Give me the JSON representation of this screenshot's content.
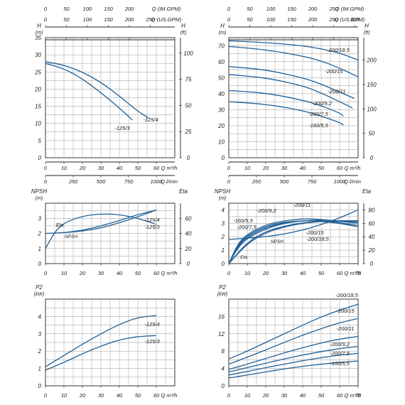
{
  "colors": {
    "curve": "#1f5f96",
    "grid": "#9a9a9a",
    "frame": "#222222"
  },
  "chart_data": [
    {
      "id": "head-small",
      "type": "line",
      "top_axes": [
        {
          "label": "Q (IM.GPM)",
          "ticks": [
            0,
            50,
            100,
            150,
            200
          ]
        },
        {
          "label": "Q (US.GPM)",
          "ticks": [
            0,
            50,
            100,
            150,
            200,
            250
          ]
        }
      ],
      "bottom_axes": [
        {
          "label": "Q m³/h",
          "ticks": [
            0,
            10,
            20,
            30,
            40,
            50,
            60
          ]
        },
        {
          "label": "Q l/min",
          "ticks": [
            0,
            250,
            500,
            750,
            1000
          ]
        }
      ],
      "ylabel": "H (m)",
      "ylim": [
        0,
        35
      ],
      "yticks": [
        0,
        5,
        10,
        15,
        20,
        25,
        30,
        35
      ],
      "y2label": "H (ft)",
      "y2ticks": [
        0,
        25,
        50,
        75,
        100
      ],
      "xlim": [
        0,
        70
      ],
      "grid": true,
      "series": [
        {
          "name": "-125/4",
          "x": [
            0,
            10,
            20,
            30,
            40,
            50,
            56
          ],
          "y": [
            28,
            27,
            25,
            22,
            18,
            13.5,
            11.5
          ]
        },
        {
          "name": "-125/3",
          "x": [
            0,
            10,
            20,
            30,
            40,
            47
          ],
          "y": [
            27.5,
            26,
            23,
            19,
            14.5,
            11
          ]
        }
      ]
    },
    {
      "id": "head-large",
      "type": "line",
      "top_axes": [
        {
          "label": "Q (IM.GPM)",
          "ticks": [
            0,
            50,
            100,
            150,
            200,
            250
          ]
        },
        {
          "label": "Q (US.GPM)",
          "ticks": [
            0,
            50,
            100,
            150,
            200,
            250,
            300
          ]
        }
      ],
      "bottom_axes": [
        {
          "label": "Q m³/h",
          "ticks": [
            0,
            10,
            20,
            30,
            40,
            50,
            60
          ]
        },
        {
          "label": "Q l/min",
          "ticks": [
            0,
            250,
            500,
            750,
            1000
          ]
        }
      ],
      "ylabel": "H (m)",
      "ylim": [
        0,
        75
      ],
      "yticks": [
        0,
        10,
        20,
        30,
        40,
        50,
        60,
        70
      ],
      "y2label": "H (ft)",
      "y2ticks": [
        0,
        50,
        100,
        150,
        200
      ],
      "xlim": [
        0,
        70
      ],
      "grid": true,
      "series": [
        {
          "name": "-200/18,5",
          "x": [
            0,
            20,
            40,
            50,
            60,
            70
          ],
          "y": [
            73,
            72,
            70,
            68,
            65.5,
            61
          ]
        },
        {
          "name": "-200/15",
          "x": [
            0,
            20,
            40,
            50,
            60,
            70
          ],
          "y": [
            69.5,
            67.5,
            63.5,
            60.5,
            56,
            50.5
          ]
        },
        {
          "name": "-200/11",
          "x": [
            0,
            20,
            40,
            50,
            60,
            68
          ],
          "y": [
            57,
            55,
            50,
            46,
            41,
            37
          ]
        },
        {
          "name": "-200/9,2",
          "x": [
            0,
            20,
            40,
            50,
            60,
            67
          ],
          "y": [
            52,
            50,
            45,
            40.5,
            35,
            31
          ]
        },
        {
          "name": "-200/7,5",
          "x": [
            0,
            20,
            40,
            50,
            60,
            62
          ],
          "y": [
            42,
            40.5,
            36,
            32.5,
            28,
            26
          ]
        },
        {
          "name": "-160/5,5",
          "x": [
            0,
            20,
            40,
            50,
            60,
            62
          ],
          "y": [
            35,
            33.5,
            29.5,
            26,
            22,
            20.5
          ]
        }
      ]
    },
    {
      "id": "npsh-small",
      "type": "line",
      "ylabel": "NPSH (m)",
      "ylim": [
        0,
        4
      ],
      "yticks": [
        0,
        1,
        2,
        3
      ],
      "y2label": "Eta",
      "y2lim": [
        0,
        80
      ],
      "y2ticks": [
        0,
        20,
        40,
        60
      ],
      "xlabel": "Q m³/h",
      "xlim": [
        0,
        70
      ],
      "xticks": [
        0,
        10,
        20,
        30,
        40,
        50,
        60
      ],
      "grid": true,
      "labels": {
        "eta": "Eta",
        "npsh": "NPSH"
      },
      "series": [
        {
          "name": "-125/4",
          "x": [
            0,
            10,
            20,
            30,
            40,
            50,
            60
          ],
          "y": [
            2.0,
            2.05,
            2.15,
            2.35,
            2.7,
            3.1,
            3.55
          ]
        },
        {
          "name": "Eta",
          "x": [
            0,
            5,
            10,
            20,
            30,
            40,
            50,
            60
          ],
          "y": [
            20,
            42,
            54,
            63,
            66,
            65,
            60,
            52
          ]
        },
        {
          "name": "-125/3",
          "x": [
            10,
            20,
            30,
            40,
            50,
            60
          ],
          "y": [
            2.05,
            2.2,
            2.5,
            2.85,
            3.25,
            3.55
          ]
        }
      ]
    },
    {
      "id": "npsh-large",
      "type": "line",
      "ylabel": "NPSH (m)",
      "ylim": [
        0,
        4.5
      ],
      "yticks": [
        0,
        1,
        2,
        3,
        4
      ],
      "y2label": "Eta",
      "y2lim": [
        0,
        90
      ],
      "y2ticks": [
        0,
        20,
        40,
        60,
        80
      ],
      "xlabel": "Q m³/h",
      "xlim": [
        0,
        70
      ],
      "xticks": [
        0,
        10,
        20,
        30,
        40,
        50,
        60,
        70
      ],
      "grid": true,
      "labels": {
        "eta": "Eta",
        "npsh": "NPSH"
      },
      "series": [
        {
          "name": "-160/5,5",
          "x": [
            0,
            5,
            10,
            20,
            30,
            40,
            50,
            60,
            70
          ],
          "y": [
            0,
            28,
            42,
            56,
            62,
            64,
            63,
            60,
            55
          ]
        },
        {
          "name": "-200/7,5",
          "x": [
            0,
            5,
            10,
            20,
            30,
            40,
            50,
            60,
            70
          ],
          "y": [
            0,
            26,
            40,
            54,
            61,
            64,
            64,
            61,
            57
          ]
        },
        {
          "name": "-200/9,2",
          "x": [
            0,
            5,
            10,
            20,
            30,
            40,
            50,
            60,
            70
          ],
          "y": [
            0,
            30,
            44,
            58,
            64,
            67,
            66,
            63,
            60
          ]
        },
        {
          "name": "-200/11",
          "x": [
            0,
            5,
            10,
            20,
            30,
            40,
            50,
            60,
            70
          ],
          "y": [
            0,
            24,
            38,
            52,
            60,
            64,
            65,
            64,
            62
          ]
        },
        {
          "name": "-200/15",
          "x": [
            0,
            10,
            20,
            30,
            40,
            50,
            60,
            70
          ],
          "y": [
            0,
            32,
            48,
            56,
            61,
            63,
            63,
            62
          ]
        },
        {
          "name": "-200/18,5",
          "x": [
            0,
            10,
            20,
            30,
            40,
            50,
            60,
            70
          ],
          "y": [
            0,
            30,
            46,
            55,
            60,
            63,
            64,
            64
          ]
        },
        {
          "name": "NPSH",
          "x": [
            0,
            10,
            20,
            30,
            40,
            50,
            60,
            70
          ],
          "y": [
            1.8,
            1.9,
            2.0,
            2.2,
            2.5,
            2.9,
            3.4,
            4.0
          ]
        }
      ]
    },
    {
      "id": "power-small",
      "type": "line",
      "ylabel": "P2 (kW)",
      "ylim": [
        0,
        5
      ],
      "yticks": [
        0,
        1,
        2,
        3,
        4
      ],
      "xlabel": "Q m³/h",
      "xlim": [
        0,
        70
      ],
      "xticks": [
        0,
        10,
        20,
        30,
        40,
        50,
        60
      ],
      "grid": true,
      "series": [
        {
          "name": "-125/4",
          "x": [
            0,
            10,
            20,
            30,
            40,
            50,
            60
          ],
          "y": [
            1.1,
            1.75,
            2.4,
            3.0,
            3.55,
            3.95,
            4.05
          ]
        },
        {
          "name": "-125/3",
          "x": [
            0,
            10,
            20,
            30,
            40,
            50,
            60
          ],
          "y": [
            0.9,
            1.35,
            1.85,
            2.3,
            2.65,
            2.85,
            2.9
          ]
        }
      ]
    },
    {
      "id": "power-large",
      "type": "line",
      "ylabel": "P2 (kW)",
      "ylim": [
        0,
        20
      ],
      "yticks": [
        0,
        4,
        8,
        12,
        16
      ],
      "xlabel": "Q m³/h",
      "xlim": [
        0,
        70
      ],
      "xticks": [
        0,
        10,
        20,
        30,
        40,
        50,
        60,
        70
      ],
      "grid": true,
      "series": [
        {
          "name": "-200/18,5",
          "x": [
            0,
            10,
            20,
            30,
            40,
            50,
            60,
            70
          ],
          "y": [
            6.2,
            8.0,
            10.0,
            12.0,
            14.0,
            15.9,
            17.5,
            18.8
          ]
        },
        {
          "name": "-200/15",
          "x": [
            0,
            10,
            20,
            30,
            40,
            50,
            60,
            70
          ],
          "y": [
            5.0,
            6.6,
            8.3,
            10.0,
            11.7,
            13.2,
            14.6,
            15.5
          ]
        },
        {
          "name": "-200/11",
          "x": [
            0,
            10,
            20,
            30,
            40,
            50,
            60,
            70
          ],
          "y": [
            3.8,
            5.0,
            6.3,
            7.6,
            8.8,
            9.9,
            10.8,
            11.4
          ]
        },
        {
          "name": "-200/9,2",
          "x": [
            0,
            10,
            20,
            30,
            40,
            50,
            60,
            70
          ],
          "y": [
            3.2,
            4.2,
            5.2,
            6.2,
            7.1,
            7.9,
            8.6,
            9.1
          ]
        },
        {
          "name": "-200/7,5",
          "x": [
            0,
            10,
            20,
            30,
            40,
            50,
            60,
            70
          ],
          "y": [
            2.5,
            3.3,
            4.2,
            5.0,
            5.8,
            6.5,
            7.1,
            7.5
          ]
        },
        {
          "name": "-160/5,5",
          "x": [
            0,
            10,
            20,
            30,
            40,
            50,
            60,
            70
          ],
          "y": [
            1.8,
            2.5,
            3.2,
            3.9,
            4.5,
            5.0,
            5.4,
            5.7
          ]
        }
      ]
    }
  ]
}
